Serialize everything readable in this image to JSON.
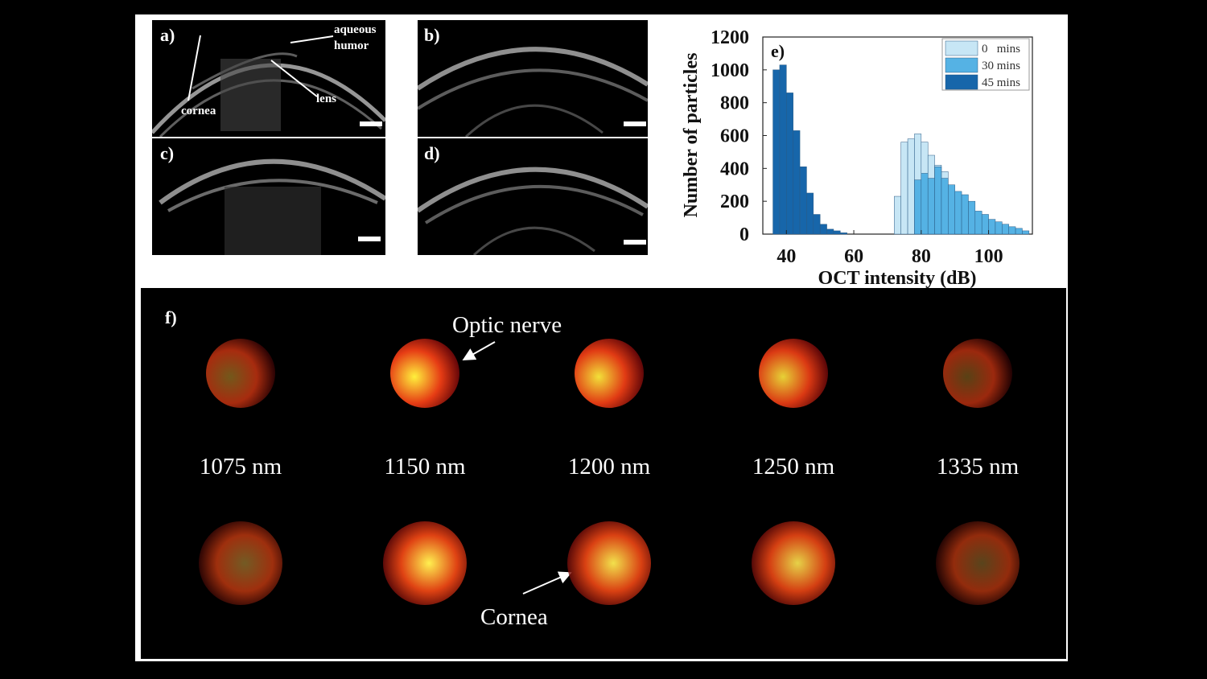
{
  "panels": {
    "a": {
      "label": "a)",
      "annotations": {
        "aqueous_humor": "aqueous\nhumor",
        "cornea": "cornea",
        "lens": "lens"
      }
    },
    "b": {
      "label": "b)"
    },
    "c": {
      "label": "c)"
    },
    "d": {
      "label": "d)"
    },
    "e": {
      "label": "e)"
    },
    "f": {
      "label": "f)",
      "annotation_top": "Optic nerve",
      "annotation_bottom": "Cornea",
      "wavelengths": [
        "1075 nm",
        "1150 nm",
        "1200 nm",
        "1250 nm",
        "1335 nm"
      ],
      "brightness": [
        0.45,
        1.0,
        0.95,
        0.9,
        0.35
      ]
    }
  },
  "chart_data": {
    "type": "bar",
    "xlabel": "OCT intensity (dB)",
    "ylabel": "Number  of particles",
    "xlim": [
      33,
      113
    ],
    "ylim": [
      0,
      1200
    ],
    "xticks": [
      40,
      60,
      80,
      100
    ],
    "yticks": [
      0,
      200,
      400,
      600,
      800,
      1000,
      1200
    ],
    "bin_width": 2,
    "legend_position": "top-right",
    "series": [
      {
        "name": "0   mins",
        "color": "#c7e6f5",
        "x": [
          73,
          75,
          77,
          79,
          81,
          83,
          85,
          87,
          89
        ],
        "values": [
          230,
          560,
          580,
          610,
          560,
          480,
          420,
          380,
          250
        ]
      },
      {
        "name": "30 mins",
        "color": "#55b2e4",
        "x": [
          79,
          81,
          83,
          85,
          87,
          89,
          91,
          93,
          95,
          97,
          99,
          101,
          103,
          105,
          107,
          109,
          111
        ],
        "values": [
          330,
          370,
          340,
          410,
          340,
          300,
          260,
          240,
          200,
          140,
          120,
          90,
          75,
          60,
          45,
          35,
          20
        ]
      },
      {
        "name": "45 mins",
        "color": "#1766aa",
        "x": [
          37,
          39,
          41,
          43,
          45,
          47,
          49,
          51,
          53,
          55,
          57
        ],
        "values": [
          1000,
          1030,
          860,
          630,
          410,
          250,
          120,
          60,
          30,
          20,
          8
        ]
      }
    ]
  }
}
